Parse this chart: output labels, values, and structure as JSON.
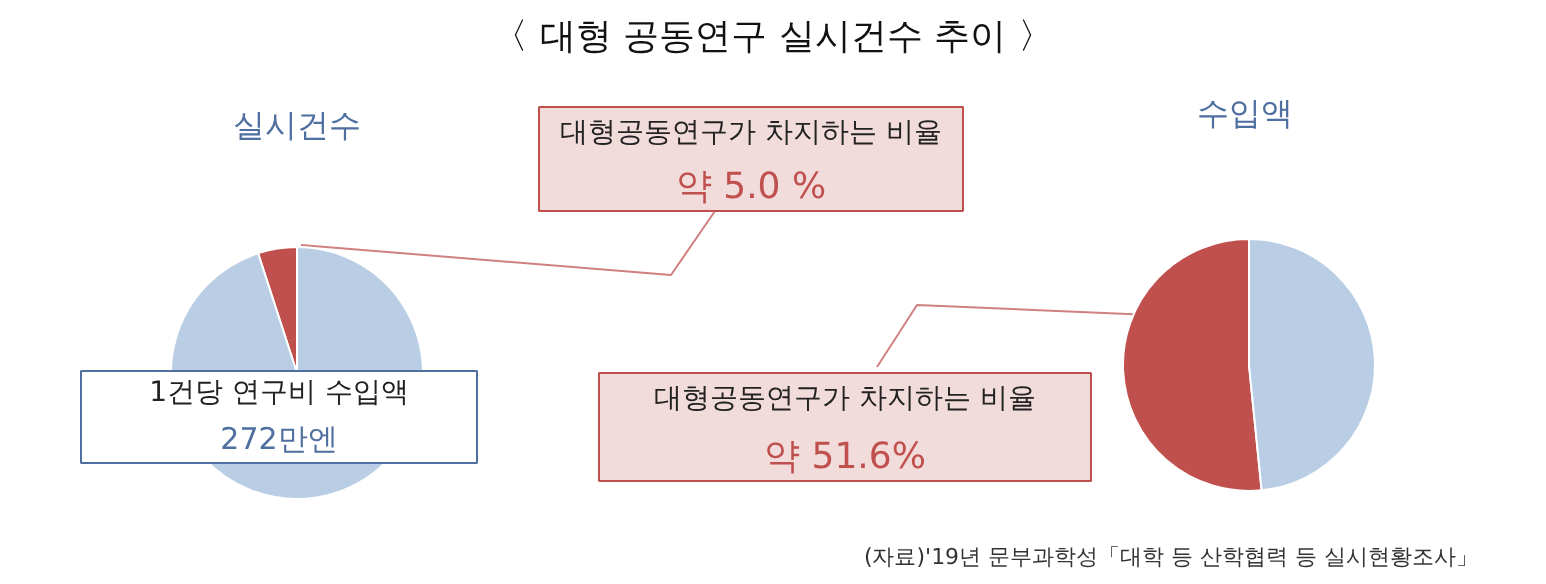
{
  "chart_data": [
    {
      "type": "pie",
      "title": "실시건수",
      "categories": [
        null,
        null
      ],
      "values": [
        5.0,
        95.0
      ],
      "colors": [
        "#c0504d",
        "#b9cde5"
      ],
      "annotations": [
        "〈 대형 공동연구 실시건수 추이 〉",
        "대형공동연구가 차지하는 비율",
        "약 5.0 %",
        "1건당 연구비 수입액",
        "272만엔"
      ]
    },
    {
      "type": "pie",
      "title": "수입액",
      "categories": [
        null,
        null
      ],
      "values": [
        51.6,
        48.4
      ],
      "colors": [
        "#c0504d",
        "#b9cde5"
      ],
      "annotations": [
        "대형공동연구가 차지하는 비율",
        "약 51.6%",
        "(자료)'19년 문부과학성「대학 등 산학협력 등 실시현황조사」"
      ]
    }
  ]
}
